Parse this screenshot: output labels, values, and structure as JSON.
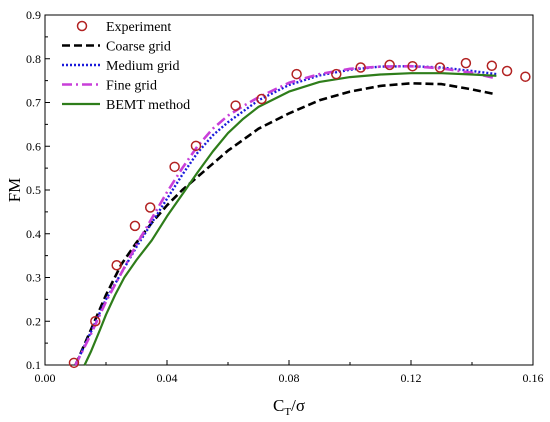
{
  "chart_data": {
    "type": "line",
    "title": "",
    "xlabel": "CT/σ",
    "xlabel_main": "C",
    "xlabel_sub": "T",
    "xlabel_tail": "/σ",
    "ylabel": "FM",
    "xlim": [
      0.0,
      0.16
    ],
    "ylim": [
      0.1,
      0.9
    ],
    "x_ticks": [
      "0.00",
      "0.04",
      "0.08",
      "0.12",
      "0.16"
    ],
    "y_ticks": [
      "0.1",
      "0.2",
      "0.3",
      "0.4",
      "0.5",
      "0.6",
      "0.7",
      "0.8",
      "0.9"
    ],
    "grid": false,
    "legend_position": "top-left",
    "series": [
      {
        "name": "Experiment",
        "style": "markers",
        "color": "#b22222",
        "x": [
          0.0095,
          0.0165,
          0.0235,
          0.0295,
          0.0345,
          0.0425,
          0.0495,
          0.0625,
          0.071,
          0.0825,
          0.0955,
          0.1035,
          0.113,
          0.1205,
          0.1295,
          0.138,
          0.1465,
          0.1515,
          0.1575
        ],
        "y": [
          0.105,
          0.2,
          0.328,
          0.418,
          0.46,
          0.553,
          0.601,
          0.693,
          0.708,
          0.765,
          0.765,
          0.78,
          0.786,
          0.783,
          0.78,
          0.79,
          0.784,
          0.772,
          0.759
        ]
      },
      {
        "name": "Coarse grid",
        "style": "dashed",
        "color": "#000000",
        "x": [
          0.01,
          0.015,
          0.02,
          0.025,
          0.03,
          0.035,
          0.04,
          0.045,
          0.05,
          0.055,
          0.06,
          0.065,
          0.07,
          0.08,
          0.09,
          0.1,
          0.11,
          0.12,
          0.13,
          0.14,
          0.147
        ],
        "y": [
          0.1,
          0.18,
          0.26,
          0.33,
          0.38,
          0.425,
          0.465,
          0.5,
          0.53,
          0.56,
          0.59,
          0.615,
          0.64,
          0.675,
          0.705,
          0.725,
          0.738,
          0.744,
          0.742,
          0.73,
          0.72
        ]
      },
      {
        "name": "Medium grid",
        "style": "dotted",
        "color": "#1a1adb",
        "x": [
          0.01,
          0.015,
          0.02,
          0.025,
          0.03,
          0.035,
          0.04,
          0.045,
          0.05,
          0.055,
          0.06,
          0.065,
          0.07,
          0.08,
          0.09,
          0.1,
          0.11,
          0.12,
          0.13,
          0.14,
          0.148
        ],
        "y": [
          0.1,
          0.175,
          0.25,
          0.31,
          0.37,
          0.425,
          0.48,
          0.535,
          0.585,
          0.625,
          0.655,
          0.68,
          0.705,
          0.74,
          0.762,
          0.775,
          0.782,
          0.783,
          0.78,
          0.772,
          0.765
        ]
      },
      {
        "name": "Fine grid",
        "style": "dash-dot",
        "color": "#c83fd9",
        "x": [
          0.01,
          0.015,
          0.02,
          0.025,
          0.03,
          0.035,
          0.04,
          0.045,
          0.05,
          0.055,
          0.06,
          0.065,
          0.07,
          0.08,
          0.09,
          0.1,
          0.11,
          0.12,
          0.13,
          0.14,
          0.148
        ],
        "y": [
          0.1,
          0.17,
          0.245,
          0.31,
          0.375,
          0.435,
          0.495,
          0.55,
          0.6,
          0.64,
          0.67,
          0.692,
          0.712,
          0.745,
          0.765,
          0.777,
          0.782,
          0.783,
          0.778,
          0.768,
          0.755
        ]
      },
      {
        "name": "BEMT method",
        "style": "solid",
        "color": "#2e7d1a",
        "x": [
          0.013,
          0.015,
          0.018,
          0.02,
          0.023,
          0.026,
          0.03,
          0.035,
          0.04,
          0.045,
          0.05,
          0.055,
          0.06,
          0.065,
          0.07,
          0.08,
          0.09,
          0.1,
          0.11,
          0.12,
          0.13,
          0.14,
          0.148
        ],
        "y": [
          0.1,
          0.13,
          0.18,
          0.215,
          0.26,
          0.3,
          0.34,
          0.385,
          0.44,
          0.49,
          0.54,
          0.588,
          0.63,
          0.663,
          0.69,
          0.725,
          0.747,
          0.758,
          0.764,
          0.767,
          0.767,
          0.764,
          0.761
        ]
      }
    ]
  }
}
